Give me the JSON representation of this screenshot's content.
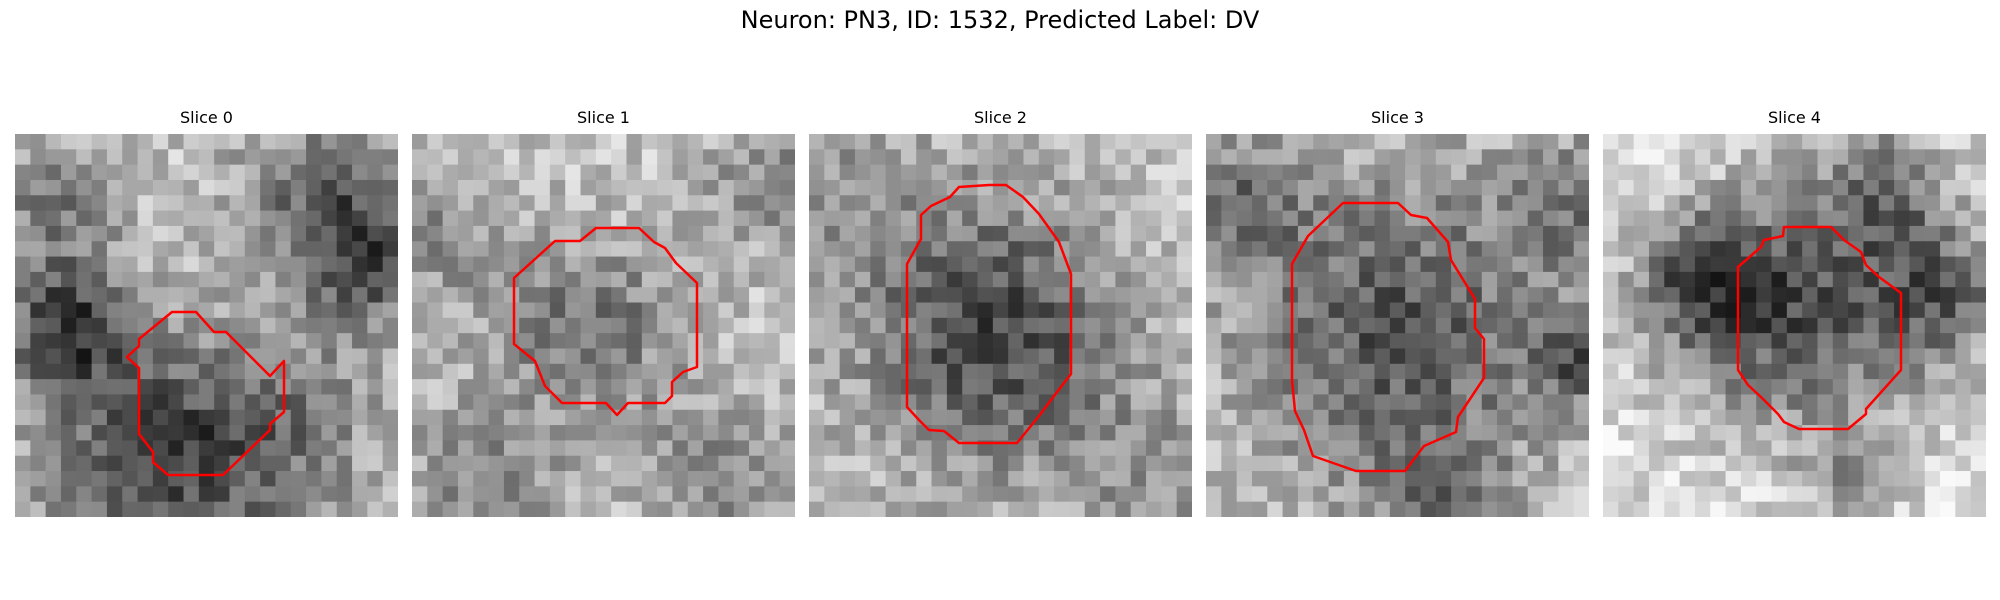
{
  "figure": {
    "title": "Neuron: PN3, ID: 1532, Predicted Label: DV"
  },
  "contour_color": "#ff0000",
  "panels": [
    {
      "title": "Slice 0"
    },
    {
      "title": "Slice 1"
    },
    {
      "title": "Slice 2"
    },
    {
      "title": "Slice 3"
    },
    {
      "title": "Slice 4"
    }
  ]
}
